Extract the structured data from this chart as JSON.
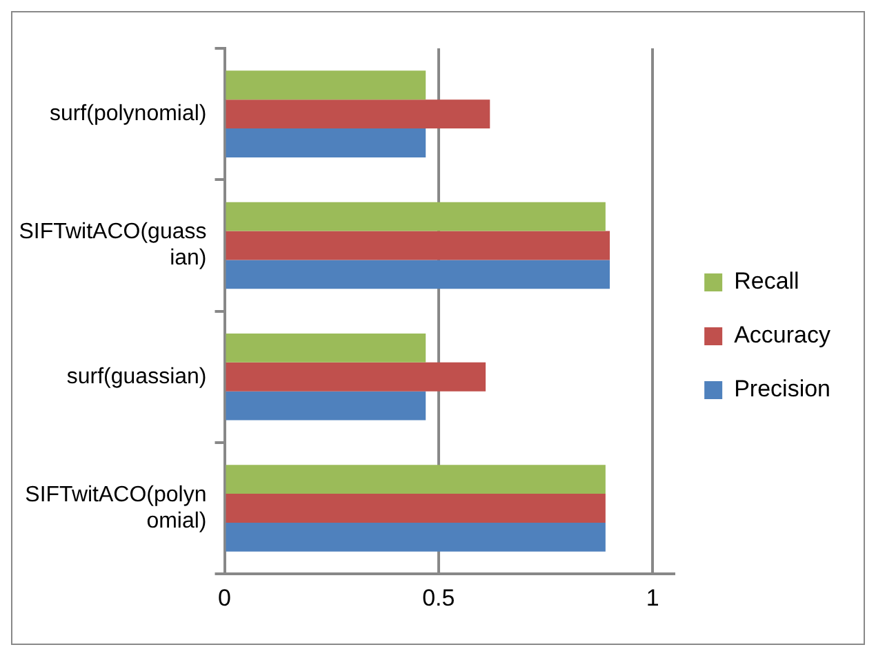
{
  "chart_data": {
    "type": "bar",
    "orientation": "horizontal",
    "categories": [
      "surf(polynomial)",
      "SIFTwitACO(guassian)",
      "surf(guassian)",
      "SIFTwitACO(polynomial)"
    ],
    "series": [
      {
        "name": "Recall",
        "color": "#9bbb59",
        "values": [
          0.47,
          0.89,
          0.47,
          0.89
        ]
      },
      {
        "name": "Accuracy",
        "color": "#c0504d",
        "values": [
          0.62,
          0.9,
          0.61,
          0.89
        ]
      },
      {
        "name": "Precision",
        "color": "#4f81bd",
        "values": [
          0.47,
          0.9,
          0.47,
          0.89
        ]
      }
    ],
    "xlim": [
      0,
      1.05
    ],
    "xticks": [
      0,
      0.5,
      1
    ],
    "grid": "x",
    "legend": "right"
  }
}
